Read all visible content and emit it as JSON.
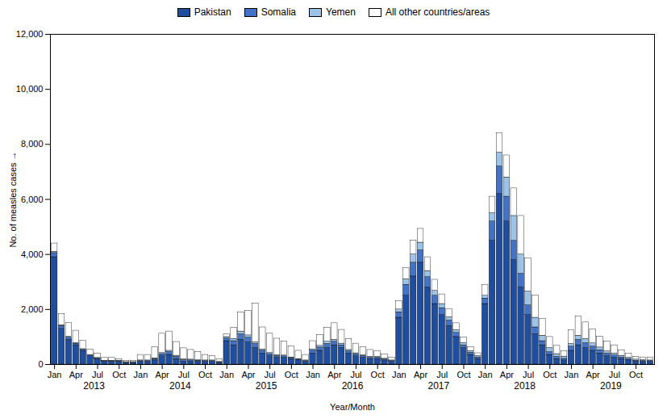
{
  "chart_data": {
    "type": "bar",
    "stacked": true,
    "ylabel": "No. of measles cases",
    "xlabel": "Year/Month",
    "ylim": [
      0,
      12000
    ],
    "yticks": [
      0,
      {
        "value": 2000,
        "label": "2,000"
      },
      {
        "value": 4000,
        "label": "4,000"
      },
      {
        "value": 6000,
        "label": "6,000"
      },
      {
        "value": 8000,
        "label": "8,000"
      },
      {
        "value": 10000,
        "label": "10,000"
      },
      {
        "value": 12000,
        "label": "12,000"
      }
    ],
    "grid": false,
    "legend": "top",
    "years": [
      2013,
      2014,
      2015,
      2016,
      2017,
      2018,
      2019
    ],
    "categories": [
      "Jan",
      null,
      null,
      "Apr",
      null,
      null,
      "Jul",
      null,
      null,
      "Oct",
      null,
      null,
      "Jan",
      null,
      null,
      "Apr",
      null,
      null,
      "Jul",
      null,
      null,
      "Oct",
      null,
      null,
      "Jan",
      null,
      null,
      "Apr",
      null,
      null,
      "Jul",
      null,
      null,
      "Oct",
      null,
      null,
      "Jan",
      null,
      null,
      "Apr",
      null,
      null,
      "Jul",
      null,
      null,
      "Oct",
      null,
      null,
      "Jan",
      null,
      null,
      "Apr",
      null,
      null,
      "Jul",
      null,
      null,
      "Oct",
      null,
      null,
      "Jan",
      null,
      null,
      "Apr",
      null,
      null,
      "Jul",
      null,
      null,
      "Oct",
      null,
      null,
      "Jan",
      null,
      null,
      "Apr",
      null,
      null,
      "Jul",
      null,
      null,
      "Oct",
      null,
      null
    ],
    "series": [
      {
        "name": "Pakistan",
        "color": "#1f4e9e",
        "values": [
          3900,
          1300,
          900,
          700,
          500,
          300,
          200,
          100,
          100,
          100,
          50,
          50,
          100,
          100,
          150,
          300,
          350,
          200,
          100,
          100,
          100,
          100,
          100,
          50,
          850,
          700,
          900,
          800,
          600,
          400,
          300,
          250,
          250,
          200,
          150,
          100,
          400,
          500,
          600,
          700,
          600,
          400,
          300,
          250,
          200,
          200,
          150,
          100,
          1700,
          2500,
          3200,
          3700,
          2800,
          2200,
          1800,
          1400,
          1000,
          600,
          350,
          200,
          2200,
          4500,
          6200,
          5200,
          3800,
          2800,
          1800,
          1100,
          700,
          350,
          200,
          150,
          500,
          700,
          600,
          500,
          400,
          300,
          250,
          200,
          150,
          100,
          100,
          100
        ]
      },
      {
        "name": "Somalia",
        "color": "#4472c4",
        "values": [
          150,
          100,
          80,
          60,
          40,
          30,
          20,
          20,
          20,
          20,
          20,
          20,
          30,
          30,
          50,
          80,
          100,
          80,
          60,
          50,
          40,
          30,
          30,
          30,
          100,
          150,
          200,
          180,
          150,
          100,
          80,
          60,
          50,
          40,
          30,
          30,
          100,
          120,
          150,
          130,
          100,
          80,
          70,
          60,
          50,
          50,
          40,
          30,
          200,
          400,
          500,
          450,
          380,
          300,
          250,
          200,
          150,
          100,
          80,
          60,
          200,
          700,
          1000,
          900,
          700,
          500,
          350,
          250,
          150,
          100,
          80,
          60,
          150,
          200,
          180,
          150,
          120,
          100,
          80,
          60,
          50,
          40,
          30,
          30
        ]
      },
      {
        "name": "Yemen",
        "color": "#9dc3e6",
        "values": [
          50,
          30,
          30,
          20,
          20,
          20,
          20,
          20,
          20,
          20,
          20,
          20,
          20,
          20,
          30,
          40,
          50,
          40,
          30,
          30,
          20,
          20,
          20,
          20,
          50,
          80,
          100,
          80,
          60,
          50,
          40,
          30,
          30,
          20,
          20,
          20,
          50,
          60,
          80,
          70,
          60,
          50,
          40,
          30,
          30,
          30,
          20,
          20,
          100,
          200,
          300,
          280,
          220,
          180,
          150,
          120,
          100,
          80,
          60,
          50,
          100,
          300,
          500,
          700,
          900,
          700,
          500,
          350,
          200,
          150,
          100,
          80,
          100,
          150,
          150,
          120,
          100,
          80,
          70,
          60,
          50,
          40,
          30,
          20
        ]
      },
      {
        "name": "All other countries/areas",
        "color": "#ffffff",
        "values": [
          300,
          400,
          500,
          450,
          300,
          200,
          150,
          100,
          100,
          50,
          50,
          50,
          200,
          200,
          400,
          700,
          700,
          500,
          400,
          350,
          300,
          200,
          150,
          100,
          100,
          400,
          700,
          900,
          1400,
          800,
          700,
          600,
          500,
          400,
          300,
          200,
          300,
          400,
          500,
          600,
          500,
          400,
          350,
          300,
          250,
          200,
          150,
          100,
          300,
          400,
          500,
          500,
          500,
          400,
          350,
          300,
          250,
          200,
          150,
          100,
          400,
          600,
          700,
          800,
          1000,
          1400,
          1200,
          800,
          600,
          400,
          300,
          200,
          500,
          700,
          600,
          500,
          400,
          350,
          300,
          200,
          150,
          100,
          100,
          100
        ]
      }
    ]
  }
}
